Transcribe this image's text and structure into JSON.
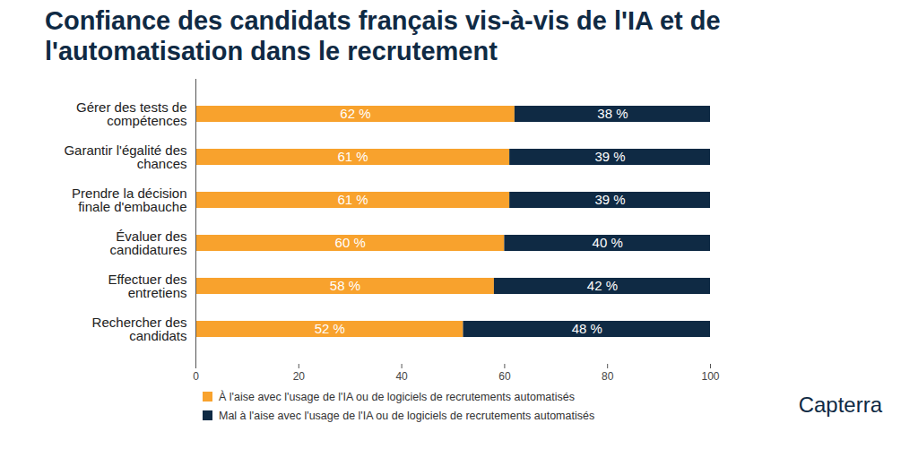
{
  "chart_data": {
    "type": "bar",
    "title": "Confiance des candidats français vis-à-vis de l'IA et de l'automatisation dans le recrutement",
    "orientation": "horizontal",
    "stacked": true,
    "data_labels": true,
    "legend": "bottom-left",
    "grid": false,
    "categories": [
      "Gérer des tests de compétences",
      "Garantir l'égalité des chances",
      "Prendre la décision finale d'embauche",
      "Évaluer des candidatures",
      "Effectuer des entretiens",
      "Rechercher des candidats"
    ],
    "series": [
      {
        "name": "À l'aise avec l'usage de l'IA ou de logiciels de recrutements automatisés",
        "color": "#f8a22d",
        "values": [
          62,
          61,
          61,
          60,
          58,
          52
        ],
        "value_labels": [
          "62 %",
          "61 %",
          "61 %",
          "60 %",
          "58 %",
          "52 %"
        ]
      },
      {
        "name": "Mal à l'aise avec l'usage de l'IA ou de logiciels de recrutements automatisés",
        "color": "#0f2a44",
        "values": [
          38,
          39,
          39,
          40,
          42,
          48
        ],
        "value_labels": [
          "38 %",
          "39 %",
          "39 %",
          "40 %",
          "42 %",
          "48 %"
        ]
      }
    ],
    "xlim": [
      0,
      100
    ],
    "xticks": [
      0,
      20,
      40,
      60,
      80,
      100
    ],
    "source": "Capterra"
  }
}
